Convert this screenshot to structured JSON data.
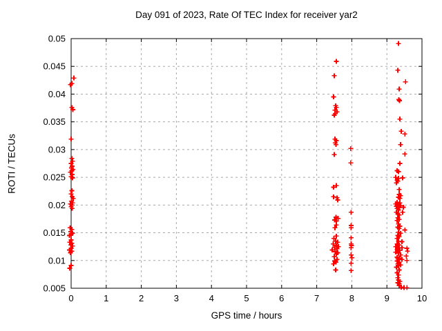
{
  "chart_data": {
    "type": "scatter",
    "title": "Day 091 of 2023, Rate Of TEC Index for receiver yar2",
    "xlabel": "GPS time / hours",
    "ylabel": "ROTI / TECUs",
    "xlim": [
      0,
      10
    ],
    "ylim": [
      0.005,
      0.05
    ],
    "grid": "dashed-grey-on-both-axes",
    "legend": "none",
    "marker": {
      "shape": "plus",
      "color": "#ff0000"
    },
    "xticks": [
      {
        "v": 0,
        "label": "0"
      },
      {
        "v": 1,
        "label": "1"
      },
      {
        "v": 2,
        "label": "2"
      },
      {
        "v": 3,
        "label": "3"
      },
      {
        "v": 4,
        "label": "4"
      },
      {
        "v": 5,
        "label": "5"
      },
      {
        "v": 6,
        "label": "6"
      },
      {
        "v": 7,
        "label": "7"
      },
      {
        "v": 8,
        "label": "8"
      },
      {
        "v": 9,
        "label": "9"
      },
      {
        "v": 10,
        "label": "10"
      }
    ],
    "yticks": [
      {
        "v": 0.005,
        "label": "0.005"
      },
      {
        "v": 0.01,
        "label": "0.01"
      },
      {
        "v": 0.015,
        "label": "0.015"
      },
      {
        "v": 0.02,
        "label": "0.02"
      },
      {
        "v": 0.025,
        "label": "0.025"
      },
      {
        "v": 0.03,
        "label": "0.03"
      },
      {
        "v": 0.035,
        "label": "0.035"
      },
      {
        "v": 0.04,
        "label": "0.04"
      },
      {
        "v": 0.045,
        "label": "0.045"
      },
      {
        "v": 0.05,
        "label": "0.05"
      }
    ],
    "series": [
      {
        "name": "ROTI",
        "points": [
          [
            0.08,
            0.0429
          ],
          [
            0.02,
            0.0419
          ],
          [
            -0.02,
            0.0417
          ],
          [
            0.02,
            0.0376
          ],
          [
            0.05,
            0.0372
          ],
          [
            0.0,
            0.0319
          ],
          [
            0.02,
            0.0284
          ],
          [
            0.04,
            0.0279
          ],
          [
            0.0,
            0.0275
          ],
          [
            0.03,
            0.027
          ],
          [
            0.01,
            0.0267
          ],
          [
            0.05,
            0.0264
          ],
          [
            0.02,
            0.0262
          ],
          [
            -0.02,
            0.0259
          ],
          [
            0.03,
            0.0255
          ],
          [
            0.0,
            0.0251
          ],
          [
            0.04,
            0.0249
          ],
          [
            0.02,
            0.0226
          ],
          [
            0.0,
            0.022
          ],
          [
            0.03,
            0.0215
          ],
          [
            0.06,
            0.0212
          ],
          [
            0.01,
            0.0207
          ],
          [
            0.04,
            0.0204
          ],
          [
            -0.02,
            0.0202
          ],
          [
            0.02,
            0.02
          ],
          [
            0.0,
            0.0197
          ],
          [
            0.03,
            0.0194
          ],
          [
            -0.03,
            0.0159
          ],
          [
            0.02,
            0.0156
          ],
          [
            -0.01,
            0.0152
          ],
          [
            0.04,
            0.0149
          ],
          [
            0.0,
            0.0147
          ],
          [
            -0.05,
            0.0145
          ],
          [
            0.0,
            0.0137
          ],
          [
            -0.04,
            0.0133
          ],
          [
            0.02,
            0.0131
          ],
          [
            -0.01,
            0.0128
          ],
          [
            0.04,
            0.0126
          ],
          [
            0.0,
            0.0122
          ],
          [
            -0.05,
            0.0119
          ],
          [
            0.02,
            0.0117
          ],
          [
            -0.02,
            0.0114
          ],
          [
            0.0,
            0.0091
          ],
          [
            -0.04,
            0.0086
          ],
          [
            7.56,
            0.0459
          ],
          [
            7.5,
            0.0433
          ],
          [
            7.48,
            0.0395
          ],
          [
            7.54,
            0.0379
          ],
          [
            7.56,
            0.0376
          ],
          [
            7.52,
            0.0371
          ],
          [
            7.58,
            0.0368
          ],
          [
            7.53,
            0.0365
          ],
          [
            7.5,
            0.0362
          ],
          [
            7.52,
            0.0319
          ],
          [
            7.56,
            0.0316
          ],
          [
            7.53,
            0.0312
          ],
          [
            7.55,
            0.0309
          ],
          [
            7.5,
            0.0291
          ],
          [
            7.56,
            0.0235
          ],
          [
            7.48,
            0.0232
          ],
          [
            7.48,
            0.0215
          ],
          [
            7.58,
            0.0213
          ],
          [
            7.6,
            0.0209
          ],
          [
            7.55,
            0.0178
          ],
          [
            7.61,
            0.0176
          ],
          [
            7.51,
            0.0173
          ],
          [
            7.56,
            0.0171
          ],
          [
            7.56,
            0.0164
          ],
          [
            7.52,
            0.0159
          ],
          [
            7.56,
            0.0144
          ],
          [
            7.49,
            0.014
          ],
          [
            7.54,
            0.0135
          ],
          [
            7.6,
            0.0133
          ],
          [
            7.47,
            0.013
          ],
          [
            7.56,
            0.0127
          ],
          [
            7.62,
            0.0125
          ],
          [
            7.51,
            0.0124
          ],
          [
            7.58,
            0.0121
          ],
          [
            7.44,
            0.0119
          ],
          [
            7.53,
            0.0116
          ],
          [
            7.6,
            0.0114
          ],
          [
            7.56,
            0.0112
          ],
          [
            7.5,
            0.0107
          ],
          [
            7.58,
            0.0102
          ],
          [
            7.51,
            0.0099
          ],
          [
            7.55,
            0.0097
          ],
          [
            7.48,
            0.0094
          ],
          [
            7.54,
            0.0083
          ],
          [
            7.97,
            0.0302
          ],
          [
            7.97,
            0.0276
          ],
          [
            7.98,
            0.0187
          ],
          [
            7.98,
            0.0163
          ],
          [
            7.98,
            0.0159
          ],
          [
            7.98,
            0.0141
          ],
          [
            7.98,
            0.013
          ],
          [
            7.99,
            0.0127
          ],
          [
            7.98,
            0.0123
          ],
          [
            7.98,
            0.011
          ],
          [
            8.0,
            0.0105
          ],
          [
            7.98,
            0.0095
          ],
          [
            7.98,
            0.0082
          ],
          [
            9.33,
            0.0491
          ],
          [
            9.31,
            0.0443
          ],
          [
            9.53,
            0.0422
          ],
          [
            9.35,
            0.0409
          ],
          [
            9.34,
            0.039
          ],
          [
            9.36,
            0.0388
          ],
          [
            9.37,
            0.0355
          ],
          [
            9.41,
            0.0333
          ],
          [
            9.51,
            0.0328
          ],
          [
            9.39,
            0.0309
          ],
          [
            9.51,
            0.0292
          ],
          [
            9.37,
            0.0275
          ],
          [
            9.29,
            0.0262
          ],
          [
            9.33,
            0.026
          ],
          [
            9.25,
            0.025
          ],
          [
            9.45,
            0.0249
          ],
          [
            9.33,
            0.0248
          ],
          [
            9.29,
            0.0245
          ],
          [
            9.31,
            0.0243
          ],
          [
            9.27,
            0.024
          ],
          [
            9.35,
            0.0228
          ],
          [
            9.35,
            0.0219
          ],
          [
            9.39,
            0.0217
          ],
          [
            9.33,
            0.0214
          ],
          [
            9.37,
            0.0212
          ],
          [
            9.29,
            0.0205
          ],
          [
            9.37,
            0.0204
          ],
          [
            9.25,
            0.0202
          ],
          [
            9.33,
            0.02
          ],
          [
            9.39,
            0.0199
          ],
          [
            9.27,
            0.0198
          ],
          [
            9.47,
            0.0196
          ],
          [
            9.35,
            0.0195
          ],
          [
            9.29,
            0.0194
          ],
          [
            9.33,
            0.0191
          ],
          [
            9.27,
            0.0187
          ],
          [
            9.45,
            0.0187
          ],
          [
            9.31,
            0.0184
          ],
          [
            9.35,
            0.0182
          ],
          [
            9.31,
            0.0177
          ],
          [
            9.35,
            0.0174
          ],
          [
            9.29,
            0.0172
          ],
          [
            9.33,
            0.0166
          ],
          [
            9.37,
            0.0162
          ],
          [
            9.31,
            0.016
          ],
          [
            9.35,
            0.0158
          ],
          [
            9.51,
            0.0155
          ],
          [
            9.33,
            0.0151
          ],
          [
            9.39,
            0.0149
          ],
          [
            9.31,
            0.0145
          ],
          [
            9.35,
            0.0143
          ],
          [
            9.29,
            0.014
          ],
          [
            9.33,
            0.0135
          ],
          [
            9.43,
            0.0134
          ],
          [
            9.29,
            0.013
          ],
          [
            9.35,
            0.0128
          ],
          [
            9.25,
            0.0125
          ],
          [
            9.33,
            0.0123
          ],
          [
            9.43,
            0.0123
          ],
          [
            9.57,
            0.0122
          ],
          [
            9.29,
            0.012
          ],
          [
            9.37,
            0.0118
          ],
          [
            9.59,
            0.0117
          ],
          [
            9.25,
            0.0115
          ],
          [
            9.33,
            0.0113
          ],
          [
            9.39,
            0.011
          ],
          [
            9.55,
            0.0108
          ],
          [
            9.29,
            0.0106
          ],
          [
            9.35,
            0.0104
          ],
          [
            9.31,
            0.0103
          ],
          [
            9.43,
            0.0102
          ],
          [
            9.57,
            0.01
          ],
          [
            9.29,
            0.0099
          ],
          [
            9.35,
            0.0097
          ],
          [
            9.31,
            0.0094
          ],
          [
            9.39,
            0.0092
          ],
          [
            9.33,
            0.009
          ],
          [
            9.27,
            0.0088
          ],
          [
            9.35,
            0.0083
          ],
          [
            9.29,
            0.0078
          ],
          [
            9.33,
            0.0074
          ],
          [
            9.31,
            0.0069
          ],
          [
            9.33,
            0.0065
          ],
          [
            9.37,
            0.0062
          ],
          [
            9.31,
            0.006
          ],
          [
            9.35,
            0.0058
          ],
          [
            9.35,
            0.0055
          ],
          [
            9.41,
            0.0052
          ],
          [
            9.49,
            0.0051
          ],
          [
            9.57,
            0.0051
          ]
        ]
      }
    ],
    "colors": {
      "marker": "#ff0000",
      "grid": "#a8a8a8",
      "border": "#000000",
      "background": "#ffffff"
    }
  }
}
